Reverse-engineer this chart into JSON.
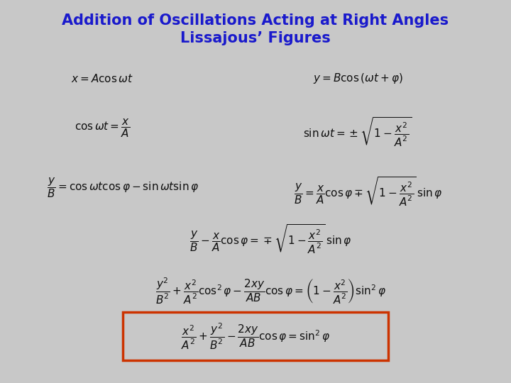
{
  "title_line1": "Addition of Oscillations Acting at Right Angles",
  "title_line2": "Lissajous’ Figures",
  "title_color": "#1a1acc",
  "title_fontsize": 15,
  "bg_color": "#c8c8c8",
  "eq1_left": "$x = A\\cos\\omega t$",
  "eq1_right": "$y = B\\cos\\left(\\omega t + \\varphi\\right)$",
  "eq2_left": "$\\cos\\omega t = \\dfrac{x}{A}$",
  "eq2_right": "$\\sin\\omega t = \\pm\\sqrt{1 - \\dfrac{x^2}{A^2}}$",
  "eq3_left": "$\\dfrac{y}{B} = \\cos\\omega t\\cos\\varphi - \\sin\\omega t\\sin\\varphi$",
  "eq3_right": "$\\dfrac{y}{B} = \\dfrac{x}{A}\\cos\\varphi \\mp \\sqrt{1 - \\dfrac{x^2}{A^2}}\\,\\sin\\varphi$",
  "eq4": "$\\dfrac{y}{B} - \\dfrac{x}{A}\\cos\\varphi = \\mp\\sqrt{1 - \\dfrac{x^2}{A^2}}\\,\\sin\\varphi$",
  "eq5": "$\\dfrac{y^2}{B^2} + \\dfrac{x^2}{A^2}\\cos^2\\varphi - \\dfrac{2xy}{AB}\\cos\\varphi = \\left(1 - \\dfrac{x^2}{A^2}\\right)\\sin^2\\varphi$",
  "eq6": "$\\dfrac{x^2}{A^2} + \\dfrac{y^2}{B^2} - \\dfrac{2xy}{AB}\\cos\\varphi = \\sin^2\\varphi$",
  "box_color": "#cc3300",
  "text_color": "#111111",
  "eq_fontsize": 11
}
